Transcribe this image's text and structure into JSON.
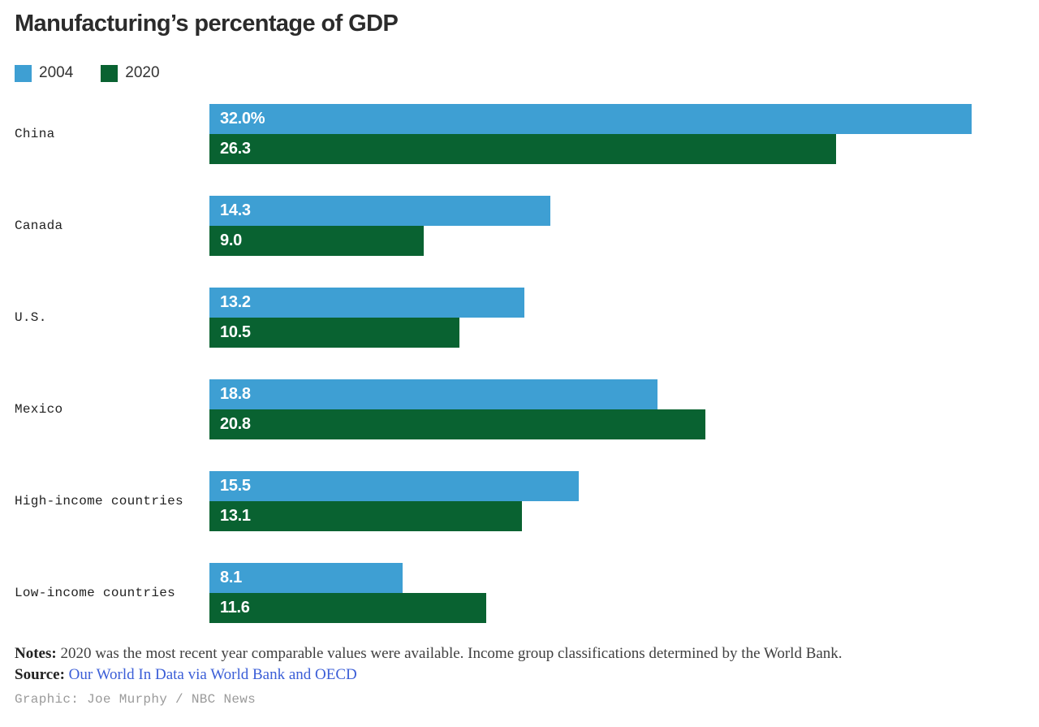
{
  "title": "Manufacturing’s percentage of GDP",
  "legend": [
    {
      "label": "2004",
      "color": "#3E9FD3"
    },
    {
      "label": "2020",
      "color": "#096231"
    }
  ],
  "chart_data": {
    "type": "bar",
    "orientation": "horizontal",
    "title": "Manufacturing’s percentage of GDP",
    "categories": [
      "China",
      "Canada",
      "U.S.",
      "Mexico",
      "High-income countries",
      "Low-income countries"
    ],
    "series": [
      {
        "name": "2004",
        "color": "#3E9FD3",
        "values": [
          32.0,
          14.3,
          13.2,
          18.8,
          15.5,
          8.1
        ],
        "labels": [
          "32.0%",
          "14.3",
          "13.2",
          "18.8",
          "15.5",
          "8.1"
        ]
      },
      {
        "name": "2020",
        "color": "#096231",
        "values": [
          26.3,
          9.0,
          10.5,
          20.8,
          13.1,
          11.6
        ],
        "labels": [
          "26.3",
          "9.0",
          "10.5",
          "20.8",
          "13.1",
          "11.6"
        ]
      }
    ],
    "xlim": [
      0,
      34.2
    ],
    "grid": false,
    "legend_position": "top-left",
    "value_labels": "inside-start"
  },
  "footer": {
    "notes_label": "Notes:",
    "notes_text": " 2020 was the most recent year comparable values were available. Income group classifications determined by the World Bank.",
    "source_label": "Source:",
    "source_link": "Our World In Data via World Bank and OECD",
    "link_color": "#3B5ED7",
    "credit": "Graphic: Joe Murphy / NBC News"
  }
}
